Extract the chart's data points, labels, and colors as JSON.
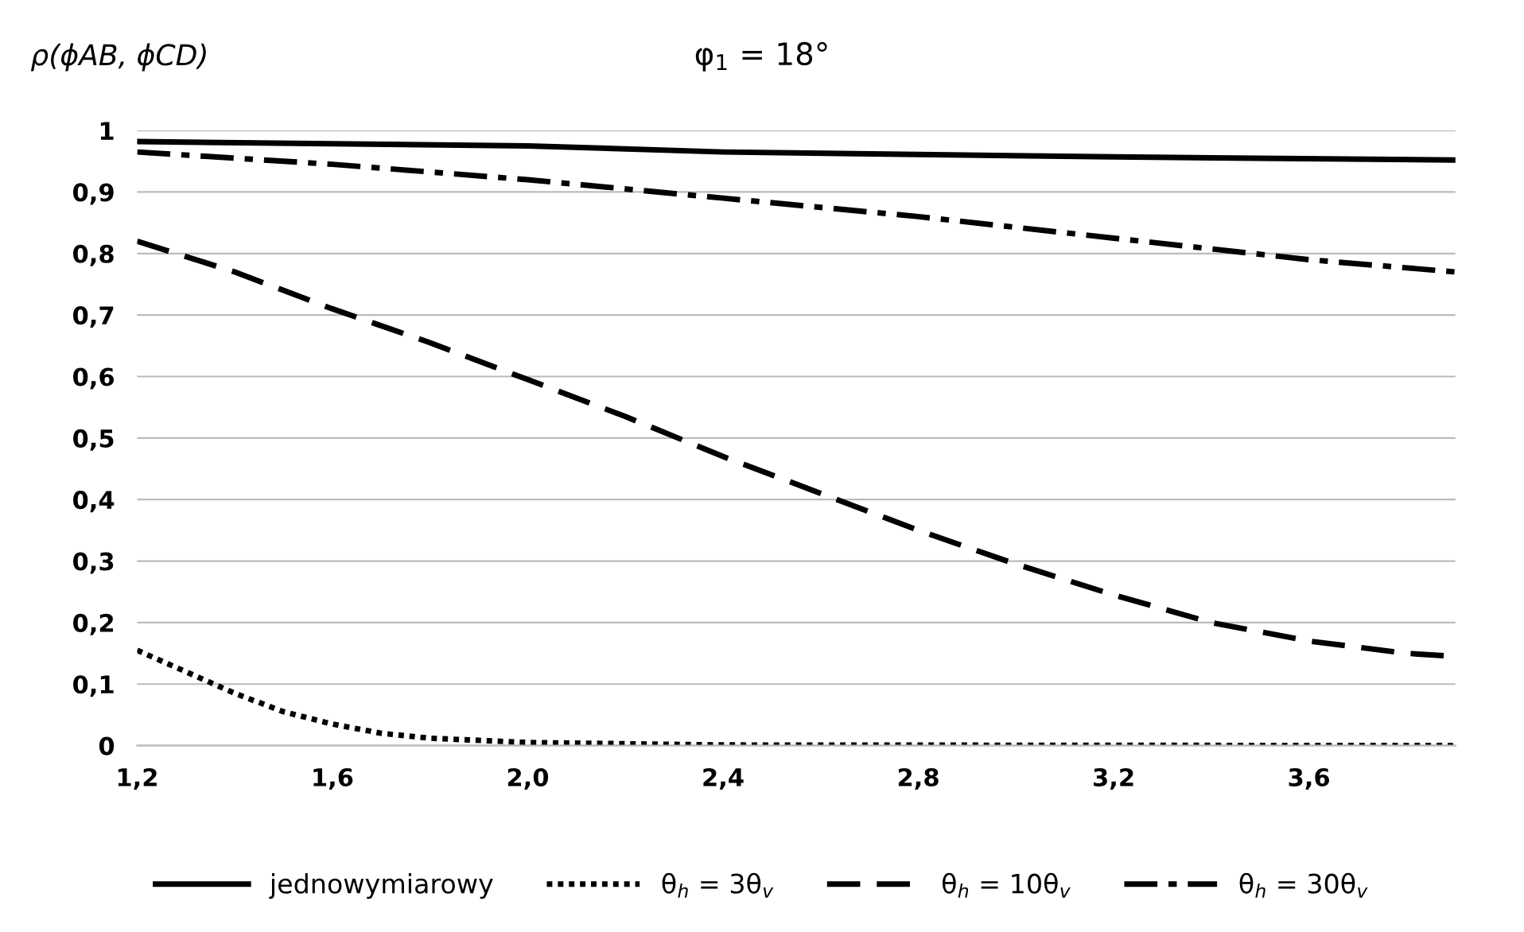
{
  "chart_data": {
    "type": "line",
    "title": "φ$_{1}$ = 18°",
    "ylabel": "ρ(ϕAB, ϕCD)",
    "xlim": [
      1.2,
      3.9
    ],
    "xticks": [
      {
        "value": 1.2,
        "label": "1,2"
      },
      {
        "value": 1.6,
        "label": "1,6"
      },
      {
        "value": 2.0,
        "label": "2,0"
      },
      {
        "value": 2.4,
        "label": "2,4"
      },
      {
        "value": 2.8,
        "label": "2,8"
      },
      {
        "value": 3.2,
        "label": "3,2"
      },
      {
        "value": 3.6,
        "label": "3,6"
      }
    ],
    "ylim": [
      0,
      1
    ],
    "yticks": [
      0,
      {
        "value": 0.1,
        "label": "0,1"
      },
      {
        "value": 0.2,
        "label": "0,2"
      },
      {
        "value": 0.3,
        "label": "0,3"
      },
      {
        "value": 0.4,
        "label": "0,4"
      },
      {
        "value": 0.5,
        "label": "0,5"
      },
      {
        "value": 0.6,
        "label": "0,6"
      },
      {
        "value": 0.7,
        "label": "0,7"
      },
      {
        "value": 0.8,
        "label": "0,8"
      },
      {
        "value": 0.9,
        "label": "0,9"
      },
      1
    ],
    "grid": "y",
    "legend": "bottom",
    "marker": "none",
    "series": [
      {
        "name": "jednowymiarowy",
        "color": "#000000",
        "line_style": "solid",
        "x": [
          1.2,
          2.0,
          2.4,
          3.2,
          3.9
        ],
        "values": [
          0.982,
          0.975,
          0.965,
          0.957,
          0.952
        ]
      },
      {
        "name": "θ$_{h}$ = 3θ$_{v}$",
        "color": "#000000",
        "line_style": "dotted",
        "x": [
          1.2,
          1.3,
          1.4,
          1.5,
          1.6,
          1.7,
          1.8,
          2.0,
          2.4,
          3.9
        ],
        "values": [
          0.155,
          0.12,
          0.085,
          0.055,
          0.035,
          0.02,
          0.012,
          0.005,
          0.001,
          0
        ]
      },
      {
        "name": "θ$_{h}$ = 10θ$_{v}$",
        "color": "#000000",
        "line_style": "dashed",
        "x": [
          1.2,
          1.4,
          1.6,
          1.8,
          2.0,
          2.2,
          2.4,
          2.6,
          2.8,
          3.0,
          3.2,
          3.4,
          3.6,
          3.8,
          3.9
        ],
        "values": [
          0.82,
          0.77,
          0.71,
          0.655,
          0.595,
          0.535,
          0.47,
          0.41,
          0.35,
          0.295,
          0.245,
          0.2,
          0.17,
          0.15,
          0.145
        ]
      },
      {
        "name": "θ$_{h}$ = 30θ$_{v}$",
        "color": "#000000",
        "line_style": "dashdot",
        "x": [
          1.2,
          1.6,
          2.0,
          2.4,
          2.8,
          3.2,
          3.6,
          3.9
        ],
        "values": [
          0.965,
          0.945,
          0.92,
          0.89,
          0.86,
          0.825,
          0.79,
          0.77
        ]
      }
    ]
  }
}
